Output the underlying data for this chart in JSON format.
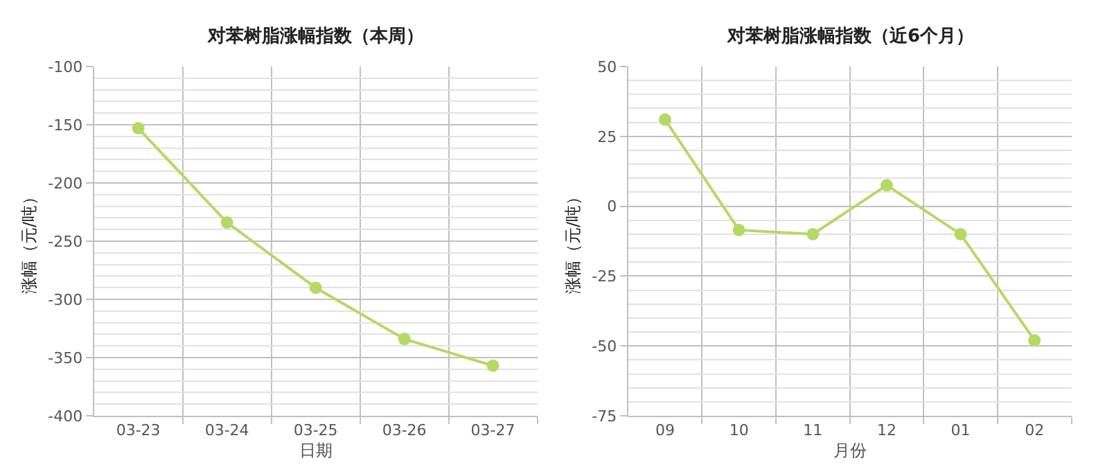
{
  "chart_data": [
    {
      "type": "line",
      "title": "对苯树脂涨幅指数（本周）",
      "xlabel": "日期",
      "ylabel": "涨幅（元/吨）",
      "categories": [
        "03-23",
        "03-24",
        "03-25",
        "03-26",
        "03-27"
      ],
      "series": [
        {
          "color": "#b5d965",
          "values": [
            -153,
            -234,
            -290,
            -334,
            -357
          ]
        }
      ],
      "ylim": [
        -400,
        -100
      ],
      "yticks": [
        -100,
        {
          "value": -110,
          "label": null
        },
        {
          "value": -120,
          "label": null
        },
        {
          "value": -130,
          "label": null
        },
        {
          "value": -140,
          "label": null
        },
        -150,
        {
          "value": -160,
          "label": null
        },
        {
          "value": -170,
          "label": null
        },
        {
          "value": -180,
          "label": null
        },
        {
          "value": -190,
          "label": null
        },
        -200,
        {
          "value": -210,
          "label": null
        },
        {
          "value": -220,
          "label": null
        },
        {
          "value": -230,
          "label": null
        },
        {
          "value": -240,
          "label": null
        },
        -250,
        {
          "value": -260,
          "label": null
        },
        {
          "value": -270,
          "label": null
        },
        {
          "value": -280,
          "label": null
        },
        {
          "value": -290,
          "label": null
        },
        -300,
        {
          "value": -310,
          "label": null
        },
        {
          "value": -320,
          "label": null
        },
        {
          "value": -330,
          "label": null
        },
        {
          "value": -340,
          "label": null
        },
        -350,
        {
          "value": -360,
          "label": null
        },
        {
          "value": -370,
          "label": null
        },
        {
          "value": -380,
          "label": null
        },
        {
          "value": -390,
          "label": null
        },
        -400
      ],
      "grid": true,
      "marker": "circle",
      "line_style": "solid"
    },
    {
      "type": "line",
      "title": "对苯树脂涨幅指数（近6个月）",
      "xlabel": "月份",
      "ylabel": "涨幅（元/吨）",
      "categories": [
        "09",
        "10",
        "11",
        "12",
        "01",
        "02"
      ],
      "series": [
        {
          "color": "#b5d965",
          "values": [
            31,
            -8.5,
            -10,
            7.5,
            -10,
            -48
          ]
        }
      ],
      "ylim": [
        -75,
        50
      ],
      "yticks": [
        50,
        {
          "value": 45,
          "label": null
        },
        {
          "value": 40,
          "label": null
        },
        {
          "value": 35,
          "label": null
        },
        {
          "value": 30,
          "label": null
        },
        25,
        {
          "value": 20,
          "label": null
        },
        {
          "value": 15,
          "label": null
        },
        {
          "value": 10,
          "label": null
        },
        {
          "value": 5,
          "label": null
        },
        0,
        {
          "value": -5,
          "label": null
        },
        {
          "value": -10,
          "label": null
        },
        {
          "value": -15,
          "label": null
        },
        {
          "value": -20,
          "label": null
        },
        -25,
        {
          "value": -30,
          "label": null
        },
        {
          "value": -35,
          "label": null
        },
        {
          "value": -40,
          "label": null
        },
        {
          "value": -45,
          "label": null
        },
        -50,
        {
          "value": -55,
          "label": null
        },
        {
          "value": -60,
          "label": null
        },
        {
          "value": -65,
          "label": null
        },
        {
          "value": -70,
          "label": null
        },
        -75
      ],
      "grid": true,
      "marker": "circle",
      "line_style": "solid"
    }
  ]
}
